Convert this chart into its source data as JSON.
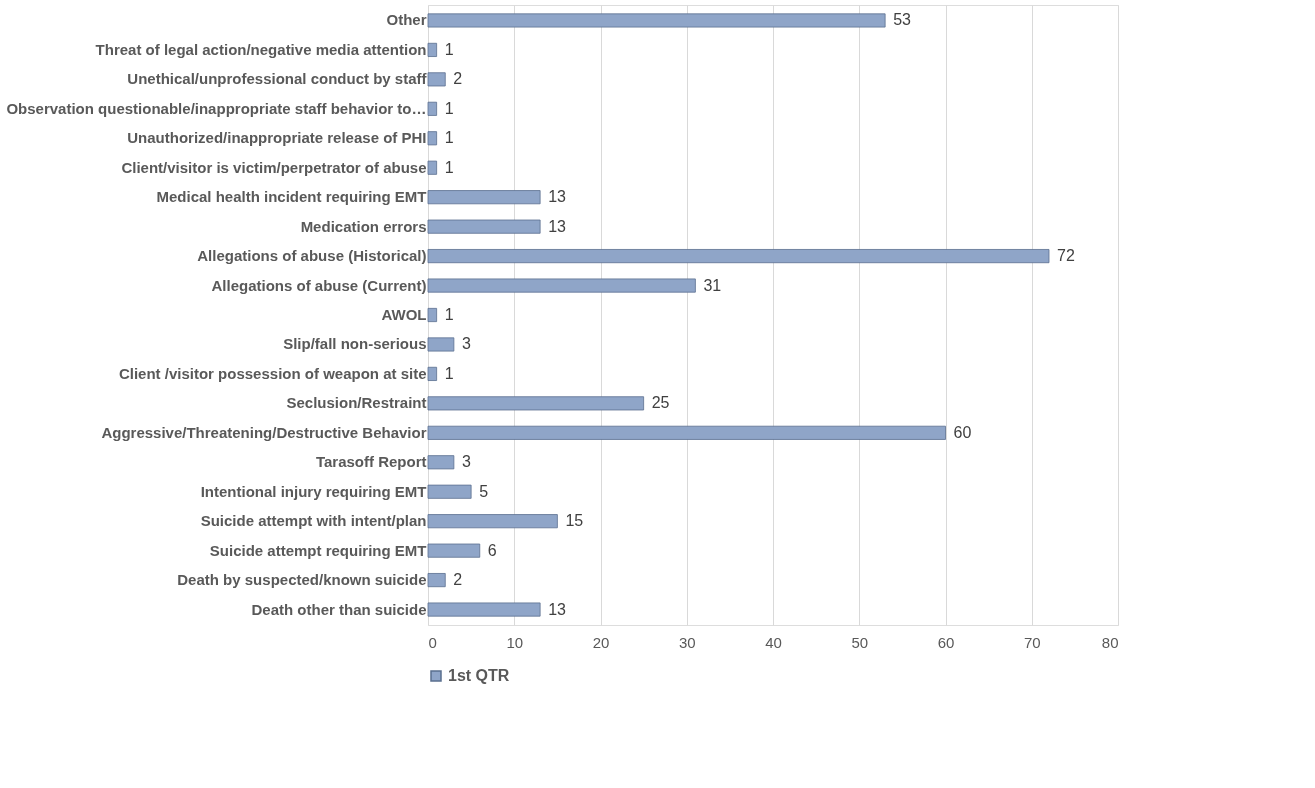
{
  "chart_data": {
    "type": "bar",
    "orientation": "horizontal",
    "categories": [
      "Other",
      "Threat of legal action/negative media attention",
      "Unethical/unprofessional conduct by staff",
      "Observation questionable/inappropriate staff behavior to…",
      "Unauthorized/inappropriate release of PHI",
      "Client/visitor is victim/perpetrator of abuse",
      "Medical health incident requiring EMT",
      "Medication errors",
      "Allegations of abuse (Historical)",
      "Allegations of abuse (Current)",
      "AWOL",
      "Slip/fall non-serious",
      "Client /visitor possession of weapon at site",
      "Seclusion/Restraint",
      "Aggressive/Threatening/Destructive Behavior",
      "Tarasoff Report",
      "Intentional injury requiring EMT",
      "Suicide attempt with intent/plan",
      "Suicide attempt requiring  EMT",
      "Death by suspected/known suicide",
      "Death other than suicide"
    ],
    "series": [
      {
        "name": "1st QTR",
        "color": "#8fa5c8",
        "values": [
          53,
          1,
          2,
          1,
          1,
          1,
          13,
          13,
          72,
          31,
          1,
          3,
          1,
          25,
          60,
          3,
          5,
          15,
          6,
          2,
          13
        ]
      }
    ],
    "xlim": [
      0,
      80
    ],
    "xticks": [
      0,
      10,
      20,
      30,
      40,
      50,
      60,
      70,
      80
    ],
    "grid": "x",
    "legend": "bottom",
    "data_labels": true
  }
}
